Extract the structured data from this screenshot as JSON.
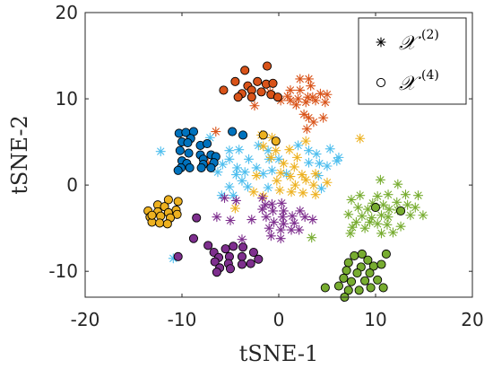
{
  "chart_data": {
    "type": "scatter",
    "xlabel": "tSNE-1",
    "ylabel": "tSNE-2",
    "xlim": [
      -20,
      20
    ],
    "ylim": [
      -13,
      20
    ],
    "xticks": [
      "-20",
      "-10",
      "0",
      "10",
      "20"
    ],
    "yticks": [
      "-10",
      "0",
      "10",
      "20"
    ],
    "grid": false,
    "legend": {
      "placement": "top-right",
      "entries": [
        {
          "marker": "asterisk",
          "label": "𝒳",
          "sup": "(2)"
        },
        {
          "marker": "circle",
          "label": "𝒳",
          "sup": "(4)"
        }
      ]
    },
    "colors": {
      "orange": "#D95319",
      "blue": "#0072BD",
      "yellow": "#EDB120",
      "purple": "#7E2F8E",
      "green": "#77AC30",
      "light_blue": "#4DBEEE"
    },
    "series": [
      {
        "marker": "circle",
        "color": "orange",
        "points": [
          [
            -3.5,
            13.3
          ],
          [
            -1.2,
            13.8
          ],
          [
            -4.5,
            12
          ],
          [
            -3.2,
            11.5
          ],
          [
            -2.2,
            12
          ],
          [
            -1.3,
            11.7
          ],
          [
            -0.6,
            11.8
          ],
          [
            -2.8,
            11
          ],
          [
            -1.8,
            10.8
          ],
          [
            -0.8,
            10.5
          ],
          [
            -3.8,
            10.6
          ],
          [
            -5.7,
            11
          ],
          [
            -4.2,
            10.2
          ],
          [
            -2.8,
            10.2
          ],
          [
            -0.1,
            10.2
          ]
        ]
      },
      {
        "marker": "asterisk",
        "color": "orange",
        "points": [
          [
            2.2,
            12.3
          ],
          [
            3.1,
            12.3
          ],
          [
            3.3,
            11.5
          ],
          [
            1.2,
            11
          ],
          [
            2.2,
            11
          ],
          [
            -0.9,
            10.8
          ],
          [
            0.9,
            10.3
          ],
          [
            0.2,
            9.8
          ],
          [
            1.2,
            9.8
          ],
          [
            2,
            10
          ],
          [
            3,
            10.2
          ],
          [
            3.5,
            10.2
          ],
          [
            4.3,
            10.6
          ],
          [
            5,
            10.5
          ],
          [
            1.8,
            9.3
          ],
          [
            2.8,
            9.6
          ],
          [
            3.8,
            9.8
          ],
          [
            4.8,
            9.6
          ],
          [
            -2.5,
            9.2
          ],
          [
            2.6,
            8.2
          ],
          [
            3.1,
            7.8
          ],
          [
            4.6,
            7.8
          ],
          [
            3.6,
            7.3
          ],
          [
            2.9,
            6.5
          ],
          [
            -6.5,
            6.2
          ],
          [
            -7.3,
            2.5
          ]
        ]
      },
      {
        "marker": "circle",
        "color": "blue",
        "points": [
          [
            -10.3,
            6
          ],
          [
            -9.6,
            6.1
          ],
          [
            -8.8,
            6.2
          ],
          [
            -9.1,
            5.4
          ],
          [
            -10,
            5
          ],
          [
            -9.4,
            4.9
          ],
          [
            -8.1,
            4.6
          ],
          [
            -7.4,
            4.8
          ],
          [
            -10.2,
            4
          ],
          [
            -9.3,
            3.7
          ],
          [
            -8.1,
            3.5
          ],
          [
            -7,
            3.5
          ],
          [
            -6.5,
            3.3
          ],
          [
            -7.8,
            3
          ],
          [
            -10,
            2.8
          ],
          [
            -9.5,
            2.5
          ],
          [
            -6.7,
            2.6
          ],
          [
            -7.8,
            2.4
          ],
          [
            -10.1,
            2
          ],
          [
            -10.4,
            1.7
          ],
          [
            -9.2,
            2
          ],
          [
            -8,
            2
          ],
          [
            -7,
            2
          ],
          [
            -4.8,
            6.2
          ],
          [
            -3.7,
            5.8
          ]
        ]
      },
      {
        "marker": "asterisk",
        "color": "light_blue",
        "points": [
          [
            -7.1,
            5.5
          ],
          [
            -12.2,
            3.9
          ],
          [
            -5.1,
            4
          ],
          [
            -4.1,
            4.1
          ],
          [
            -2.1,
            4.6
          ],
          [
            -1.1,
            4
          ],
          [
            2,
            4.6
          ],
          [
            3.1,
            4
          ],
          [
            3.9,
            3.6
          ],
          [
            5.3,
            4.2
          ],
          [
            6.2,
            3.2
          ],
          [
            -5.1,
            3
          ],
          [
            -3.1,
            3
          ],
          [
            -1,
            3
          ],
          [
            0,
            3
          ],
          [
            3.1,
            2.6
          ],
          [
            4.2,
            2.5
          ],
          [
            -5.8,
            2.4
          ],
          [
            -4.3,
            2
          ],
          [
            -2.3,
            2
          ],
          [
            -0.7,
            1.7
          ],
          [
            5,
            2.2
          ],
          [
            6,
            2.8
          ],
          [
            -6.3,
            1.5
          ],
          [
            -4.4,
            1.2
          ],
          [
            -3.5,
            1.5
          ],
          [
            -1.6,
            1.3
          ],
          [
            0.8,
            1.3
          ],
          [
            4.1,
            1.1
          ],
          [
            -3.8,
            0.5
          ],
          [
            -3.2,
            -0.2
          ],
          [
            -1.1,
            -0.3
          ],
          [
            4.4,
            -0.4
          ],
          [
            -5.1,
            -0.2
          ],
          [
            -4.7,
            -1.2
          ],
          [
            -5.9,
            -1.2
          ],
          [
            -10.9,
            -8.5
          ]
        ]
      },
      {
        "marker": "asterisk",
        "color": "yellow",
        "points": [
          [
            -1.8,
            5.8
          ],
          [
            -0.7,
            5.5
          ],
          [
            2.8,
            5.1
          ],
          [
            8.4,
            5.4
          ],
          [
            -1.6,
            4.5
          ],
          [
            -0.3,
            4
          ],
          [
            1.1,
            4.1
          ],
          [
            -0.8,
            3.2
          ],
          [
            1.9,
            3.2
          ],
          [
            0.5,
            2.5
          ],
          [
            1.6,
            2.1
          ],
          [
            -2.3,
            1.1
          ],
          [
            0.2,
            1.4
          ],
          [
            1.2,
            1
          ],
          [
            2.4,
            1.2
          ],
          [
            3.8,
            1.3
          ],
          [
            -0.2,
            0.5
          ],
          [
            2.8,
            0.6
          ],
          [
            1.7,
            0
          ],
          [
            3.6,
            0
          ],
          [
            -2.6,
            -0.8
          ],
          [
            0.1,
            -0.6
          ],
          [
            1.3,
            -0.8
          ],
          [
            2.5,
            -0.9
          ],
          [
            3.8,
            -1.1
          ],
          [
            5,
            0.3
          ],
          [
            -1.6,
            -1.3
          ],
          [
            -4.5,
            -2.7
          ]
        ]
      },
      {
        "marker": "circle",
        "color": "yellow",
        "points": [
          [
            -1.6,
            5.8
          ],
          [
            -0.3,
            5.1
          ],
          [
            -11.4,
            -1.7
          ],
          [
            -10.4,
            -1.9
          ],
          [
            -12.5,
            -2.3
          ],
          [
            -11.8,
            -2.5
          ],
          [
            -10.6,
            -2.9
          ],
          [
            -13.5,
            -3
          ],
          [
            -12.5,
            -3.1
          ],
          [
            -11.4,
            -3.2
          ],
          [
            -10.5,
            -3.4
          ],
          [
            -13.3,
            -3.7
          ],
          [
            -12.2,
            -3.6
          ],
          [
            -11.2,
            -3.8
          ],
          [
            -13.1,
            -4.3
          ],
          [
            -12.3,
            -4.4
          ],
          [
            -11.5,
            -4.5
          ],
          [
            -13.1,
            -3.5
          ]
        ]
      },
      {
        "marker": "asterisk",
        "color": "purple",
        "points": [
          [
            -5.6,
            -1.5
          ],
          [
            -4.4,
            -1.8
          ],
          [
            -1.7,
            -1.5
          ],
          [
            -1.4,
            -2.3
          ],
          [
            -0.7,
            -2.2
          ],
          [
            0.3,
            -2.1
          ],
          [
            -1.7,
            -2.8
          ],
          [
            -0.6,
            -3
          ],
          [
            0.5,
            -3
          ],
          [
            2.2,
            -3
          ],
          [
            -1.3,
            -3.7
          ],
          [
            0.4,
            -3.7
          ],
          [
            1.4,
            -3.6
          ],
          [
            2.7,
            -3.7
          ],
          [
            3.5,
            -4
          ],
          [
            -2.8,
            -4
          ],
          [
            -0.5,
            -4.3
          ],
          [
            0.5,
            -4.5
          ],
          [
            1.6,
            -4.4
          ],
          [
            -1,
            -5
          ],
          [
            0.2,
            -5.2
          ],
          [
            1.3,
            -5.2
          ],
          [
            2.1,
            -5.2
          ],
          [
            -0.8,
            -5.9
          ],
          [
            0.2,
            -6.2
          ],
          [
            -6.4,
            -3.7
          ],
          [
            -5,
            -4.1
          ],
          [
            -3.8,
            -6.3
          ]
        ]
      },
      {
        "marker": "circle",
        "color": "purple",
        "points": [
          [
            -8.5,
            -3.8
          ],
          [
            -7.3,
            -7
          ],
          [
            -6.7,
            -7.8
          ],
          [
            -5.5,
            -7.4
          ],
          [
            -4.7,
            -7.1
          ],
          [
            -3.7,
            -7.2
          ],
          [
            -2.6,
            -7.8
          ],
          [
            -6.2,
            -8.4
          ],
          [
            -5.1,
            -8.3
          ],
          [
            -3.8,
            -8.3
          ],
          [
            -2.1,
            -8.6
          ],
          [
            -6.6,
            -8.9
          ],
          [
            -5.2,
            -9.1
          ],
          [
            -3.8,
            -9.2
          ],
          [
            -2.9,
            -9.1
          ],
          [
            -6.1,
            -9.6
          ],
          [
            -5,
            -9.7
          ],
          [
            -6.4,
            -10.1
          ],
          [
            -8.8,
            -6.2
          ],
          [
            -10.4,
            -8.3
          ]
        ]
      },
      {
        "marker": "asterisk",
        "color": "green",
        "points": [
          [
            10.5,
            0.6
          ],
          [
            12.3,
            0.1
          ],
          [
            8.4,
            -1.2
          ],
          [
            10.2,
            -1.3
          ],
          [
            11.3,
            -1.1
          ],
          [
            13.1,
            -1.1
          ],
          [
            14.4,
            -1.2
          ],
          [
            7.5,
            -1.7
          ],
          [
            9.7,
            -2.1
          ],
          [
            10.8,
            -2.3
          ],
          [
            12.2,
            -2
          ],
          [
            13.3,
            -2.3
          ],
          [
            14.1,
            -2.6
          ],
          [
            8.2,
            -2.6
          ],
          [
            9.2,
            -2.8
          ],
          [
            11.4,
            -2.8
          ],
          [
            12.3,
            -2.9
          ],
          [
            7.2,
            -3.4
          ],
          [
            8.6,
            -3.6
          ],
          [
            9.6,
            -3.8
          ],
          [
            10.6,
            -3.5
          ],
          [
            11.3,
            -3.7
          ],
          [
            13.6,
            -3.5
          ],
          [
            14.9,
            -3.5
          ],
          [
            8,
            -4.3
          ],
          [
            9.4,
            -4.3
          ],
          [
            10.2,
            -4.5
          ],
          [
            11.2,
            -4.6
          ],
          [
            12.6,
            -4.8
          ],
          [
            7.6,
            -4.9
          ],
          [
            8.9,
            -5
          ],
          [
            11.8,
            -5.5
          ],
          [
            3.4,
            -6.1
          ],
          [
            10.6,
            -5.6
          ],
          [
            7.4,
            -5.6
          ]
        ]
      },
      {
        "marker": "circle",
        "color": "green",
        "points": [
          [
            10,
            -2.6
          ],
          [
            12.6,
            -3
          ],
          [
            8.6,
            -8
          ],
          [
            7.8,
            -8.2
          ],
          [
            11.1,
            -8
          ],
          [
            9.2,
            -8.7
          ],
          [
            7.2,
            -9
          ],
          [
            8.5,
            -9.5
          ],
          [
            9.8,
            -9.4
          ],
          [
            10.6,
            -9.2
          ],
          [
            7,
            -9.9
          ],
          [
            8.1,
            -10.2
          ],
          [
            9.4,
            -10.2
          ],
          [
            6.7,
            -10.8
          ],
          [
            7.5,
            -11.2
          ],
          [
            8.9,
            -11.1
          ],
          [
            10.2,
            -11
          ],
          [
            6.2,
            -11.7
          ],
          [
            7.2,
            -12.2
          ],
          [
            8.3,
            -12.2
          ],
          [
            9.5,
            -11.9
          ],
          [
            10.8,
            -11.9
          ],
          [
            4.8,
            -11.9
          ],
          [
            6.8,
            -13
          ]
        ]
      }
    ]
  }
}
